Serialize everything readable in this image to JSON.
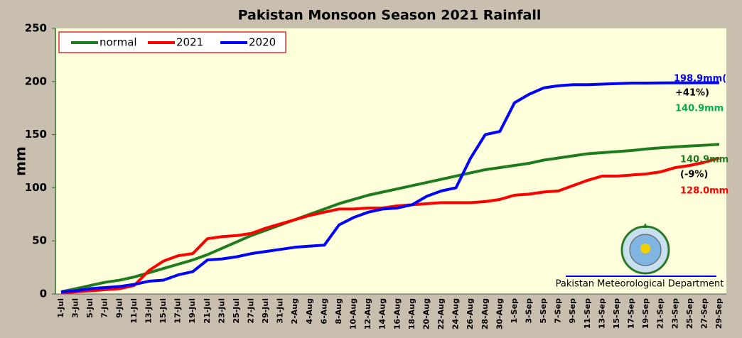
{
  "chart_data": {
    "type": "line",
    "title": "Pakistan Monsoon Season 2021 Rainfall",
    "y_label": "mm",
    "categories": [
      "1-Jul",
      "3-Jul",
      "5-Jul",
      "7-Jul",
      "9-Jul",
      "11-Jul",
      "13-Jul",
      "15-Jul",
      "17-Jul",
      "19-Jul",
      "21-Jul",
      "23-Jul",
      "25-Jul",
      "27-Jul",
      "29-Jul",
      "31-Jul",
      "2-Aug",
      "4-Aug",
      "6-Aug",
      "8-Aug",
      "10-Aug",
      "12-Aug",
      "14-Aug",
      "16-Aug",
      "18-Aug",
      "20-Aug",
      "22-Aug",
      "24-Aug",
      "26-Aug",
      "28-Aug",
      "30-Aug",
      "1-Sep",
      "3-Sep",
      "5-Sep",
      "7-Sep",
      "9-Sep",
      "11-Sep",
      "13-Sep",
      "15-Sep",
      "17-Sep",
      "19-Sep",
      "21-Sep",
      "23-Sep",
      "25-Sep",
      "27-Sep",
      "29-Sep"
    ],
    "series": [
      {
        "name": "normal",
        "color": "#1e7b1e",
        "values": [
          2,
          5,
          8,
          11,
          13,
          16,
          20,
          24,
          28,
          32,
          37,
          43,
          49,
          55,
          60,
          65,
          70,
          75,
          80,
          85,
          89,
          93,
          96,
          99,
          102,
          105,
          108,
          111,
          114,
          117,
          119,
          121,
          123,
          126,
          128,
          130,
          132,
          133,
          134,
          135,
          136.5,
          137.5,
          138.5,
          139.3,
          140,
          140.9
        ]
      },
      {
        "name": "2021",
        "color": "#ff0000",
        "values": [
          1,
          2,
          3,
          4,
          5,
          8,
          22,
          31,
          36,
          38,
          52,
          54,
          55,
          57,
          62,
          66,
          70,
          74,
          77,
          80,
          80,
          81,
          81,
          83,
          84,
          85,
          86,
          86,
          86,
          87,
          89,
          93,
          94,
          96,
          97,
          102,
          107,
          111,
          111,
          112,
          113,
          115,
          119,
          121,
          124,
          128
        ]
      },
      {
        "name": "2020",
        "color": "#0000ff",
        "values": [
          2,
          3,
          5,
          6,
          7,
          9,
          12,
          13,
          18,
          21,
          32,
          33,
          35,
          38,
          40,
          42,
          44,
          45,
          46,
          65,
          72,
          77,
          80,
          81,
          84,
          92,
          97,
          100,
          128,
          150,
          153,
          180,
          188,
          194,
          196,
          197,
          197,
          197.5,
          198,
          198.5,
          198.5,
          198.7,
          198.8,
          198.8,
          198.9,
          198.9
        ]
      }
    ],
    "ylim": [
      0,
      250
    ],
    "yticks": [
      0,
      50,
      100,
      150,
      200,
      250
    ],
    "grid": false,
    "legend": "top-left",
    "annotations": [
      {
        "text": "198.9mm(",
        "color": "#0000ff"
      },
      {
        "text": "+41%)",
        "color": "#000000"
      },
      {
        "text": "140.9mm",
        "color": "#00b050"
      },
      {
        "text": "140.9mm",
        "color": "#1e7b1e"
      },
      {
        "text": "(-9%)",
        "color": "#000000"
      },
      {
        "text": "128.0mm",
        "color": "#ff0000"
      }
    ],
    "source": "Pakistan Meteorological Department"
  }
}
